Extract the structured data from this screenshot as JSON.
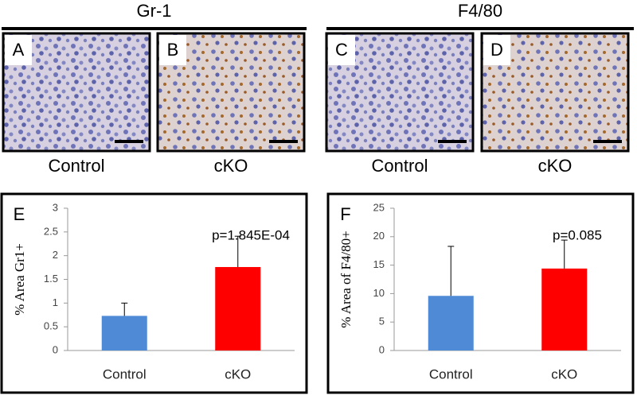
{
  "headers": [
    "Gr-1",
    "F4/80"
  ],
  "image_panels": [
    {
      "letter": "A",
      "label": "Control"
    },
    {
      "letter": "B",
      "label": "cKO"
    },
    {
      "letter": "C",
      "label": "Control"
    },
    {
      "letter": "D",
      "label": "cKO"
    }
  ],
  "chart_data": [
    {
      "type": "bar",
      "label": "E",
      "ylabel": "% Area Gr1+",
      "annotation": "p=1.845E-04",
      "categories": [
        "Control",
        "cKO"
      ],
      "values": [
        0.73,
        1.76
      ],
      "errors": [
        0.27,
        0.65
      ],
      "colors": [
        "#4f8ad6",
        "#ff0000"
      ],
      "ylim": [
        0,
        3
      ],
      "yticks": [
        0,
        0.5,
        1,
        1.5,
        2,
        2.5,
        3
      ]
    },
    {
      "type": "bar",
      "label": "F",
      "ylabel": "% Area of F4/80+",
      "annotation": "p=0.085",
      "categories": [
        "Control",
        "cKO"
      ],
      "values": [
        9.6,
        14.4
      ],
      "errors": [
        8.7,
        5.0
      ],
      "colors": [
        "#4f8ad6",
        "#ff0000"
      ],
      "ylim": [
        0,
        25
      ],
      "yticks": [
        0,
        5,
        10,
        15,
        20,
        25
      ]
    }
  ]
}
